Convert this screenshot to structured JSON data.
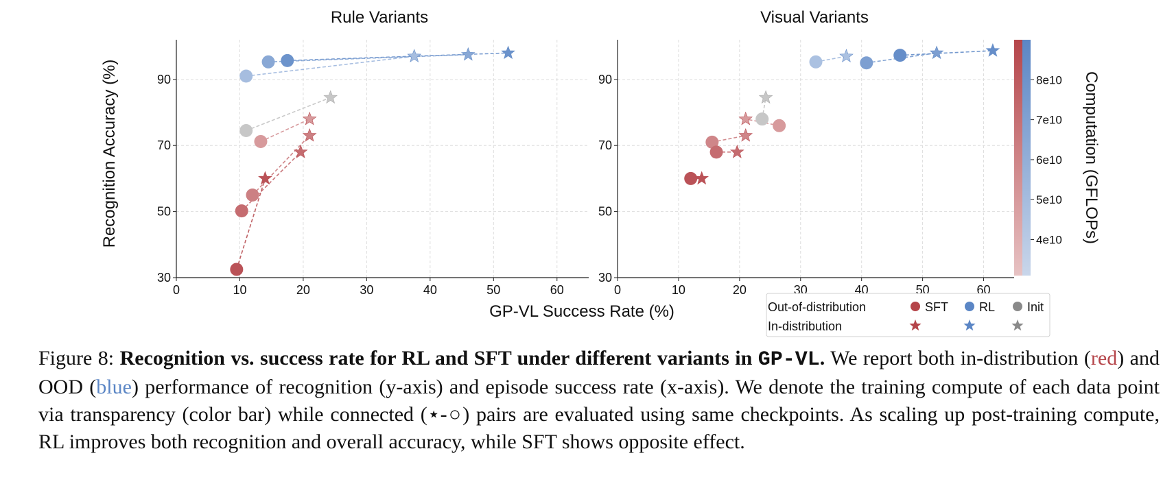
{
  "figure": {
    "xlabel": "GP-VL Success Rate (%)",
    "ylabel": "Recognition Accuracy (%)",
    "colorbar_label": "Computation (GFLOPs)",
    "colorbar_ticks": [
      "4e10",
      "5e10",
      "6e10",
      "7e10",
      "8e10"
    ],
    "colorbar_tick_values": [
      40000000000.0,
      50000000000.0,
      60000000000.0,
      70000000000.0,
      80000000000.0
    ],
    "colorbar_range": [
      31000000000.0,
      90000000000.0
    ],
    "colors": {
      "sft": "#b5454a",
      "rl": "#5b86c5",
      "init": "#a9a9a9",
      "grid": "#dddddd"
    },
    "legend": {
      "ood_label": "Out-of-distribution",
      "id_label": "In-distribution",
      "sft": "SFT",
      "rl": "RL",
      "init": "Init"
    }
  },
  "chart_data": [
    {
      "type": "scatter",
      "title": "Rule Variants",
      "xlim": [
        0,
        65
      ],
      "ylim": [
        30,
        102
      ],
      "xticks": [
        0,
        10,
        20,
        30,
        40,
        50,
        60
      ],
      "yticks": [
        30,
        50,
        70,
        90
      ],
      "grid": true,
      "pairs": [
        {
          "method": "init",
          "ood": [
            11,
            74.5
          ],
          "id": [
            24.3,
            84.5
          ],
          "shade": 0.5
        },
        {
          "method": "sft",
          "ood": [
            13.3,
            71.2
          ],
          "id": [
            21,
            78
          ],
          "shade": 0.35
        },
        {
          "method": "sft",
          "ood": [
            12,
            55
          ],
          "id": [
            21,
            73
          ],
          "shade": 0.55
        },
        {
          "method": "sft",
          "ood": [
            10.3,
            50.2
          ],
          "id": [
            19.6,
            68
          ],
          "shade": 0.7
        },
        {
          "method": "sft",
          "ood": [
            9.5,
            32.5
          ],
          "id": [
            14,
            60
          ],
          "shade": 0.9
        },
        {
          "method": "rl",
          "ood": [
            11,
            91
          ],
          "id": [
            37.5,
            97
          ],
          "shade": 0.35
        },
        {
          "method": "rl",
          "ood": [
            14.5,
            95.3
          ],
          "id": [
            46,
            97.5
          ],
          "shade": 0.6
        },
        {
          "method": "rl",
          "ood": [
            17.5,
            95.7
          ],
          "id": [
            52.3,
            98
          ],
          "shade": 0.85
        }
      ]
    },
    {
      "type": "scatter",
      "title": "Visual Variants",
      "xlim": [
        0,
        65
      ],
      "ylim": [
        30,
        102
      ],
      "xticks": [
        0,
        10,
        20,
        30,
        40,
        50,
        60
      ],
      "yticks": [
        30,
        50,
        70,
        90
      ],
      "grid": true,
      "pairs": [
        {
          "method": "init",
          "ood": [
            23.7,
            78
          ],
          "id": [
            24.3,
            84.5
          ],
          "shade": 0.5
        },
        {
          "method": "sft",
          "ood": [
            26.5,
            76
          ],
          "id": [
            21,
            78
          ],
          "shade": 0.35
        },
        {
          "method": "sft",
          "ood": [
            15.5,
            71
          ],
          "id": [
            21,
            73
          ],
          "shade": 0.5
        },
        {
          "method": "sft",
          "ood": [
            16.2,
            68
          ],
          "id": [
            19.6,
            68
          ],
          "shade": 0.7
        },
        {
          "method": "sft",
          "ood": [
            12,
            60
          ],
          "id": [
            13.8,
            60
          ],
          "shade": 0.9
        },
        {
          "method": "rl",
          "ood": [
            32.5,
            95.3
          ],
          "id": [
            37.5,
            97
          ],
          "shade": 0.3
        },
        {
          "method": "rl",
          "ood": [
            40.8,
            95
          ],
          "id": [
            52.3,
            98
          ],
          "shade": 0.7
        },
        {
          "method": "rl",
          "ood": [
            46.3,
            97.3
          ],
          "id": [
            61.5,
            98.7
          ],
          "shade": 0.9
        }
      ]
    }
  ],
  "caption": {
    "label": "Figure 8:",
    "bold": "Recognition vs.  success rate for RL and SFT under different variants in",
    "env": "GP-VL",
    "bold_end": ".",
    "t1": "We report both in-distribution (",
    "red_word": "red",
    "t2": ") and OOD (",
    "blue_word": "blue",
    "t3": ") performance of recognition (y-axis) and episode success rate (x-axis).  We denote the training compute of each data point via transparency (color bar) while connected (",
    "pair_symbol": "⋆-○",
    "t4": ") pairs are evaluated using same checkpoints. As scaling up post-training compute, RL improves both recognition and overall accuracy, while SFT shows opposite effect."
  }
}
